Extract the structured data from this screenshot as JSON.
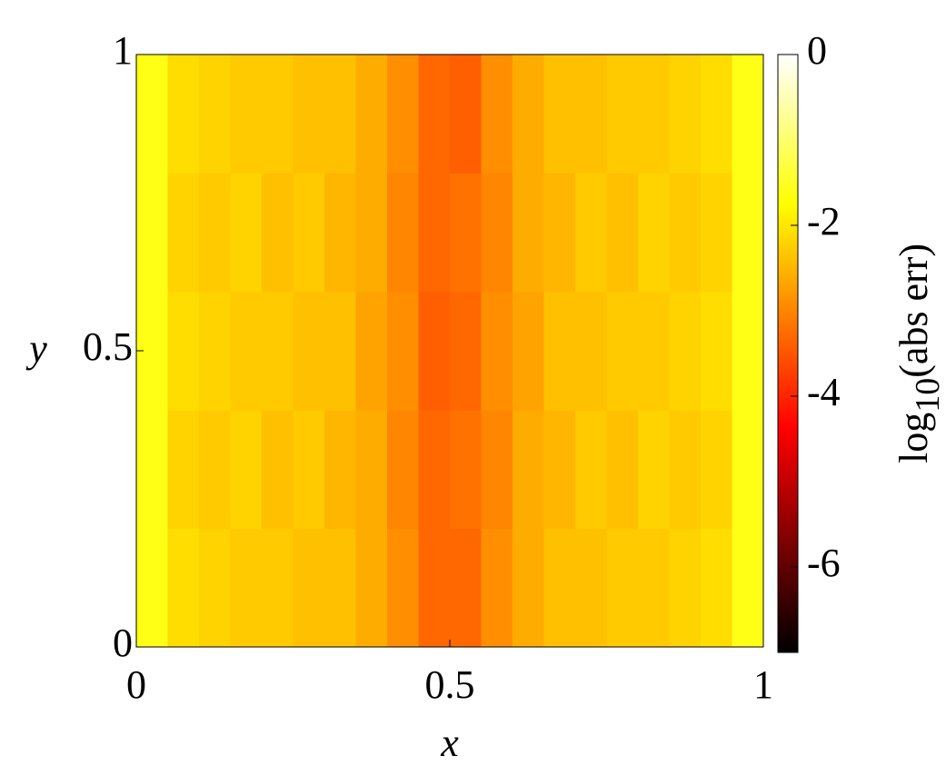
{
  "chart_data": {
    "type": "heatmap",
    "colormap": "hot",
    "xlabel": "x",
    "ylabel": "y",
    "x": [
      0.025,
      0.075,
      0.125,
      0.175,
      0.225,
      0.275,
      0.325,
      0.375,
      0.425,
      0.475,
      0.525,
      0.575,
      0.625,
      0.675,
      0.725,
      0.775,
      0.825,
      0.875,
      0.925,
      0.975
    ],
    "y": [
      0.1,
      0.3,
      0.5,
      0.7,
      0.9
    ],
    "z": [
      [
        -1.6,
        -2.1,
        -2.2,
        -2.3,
        -2.3,
        -2.4,
        -2.4,
        -2.6,
        -2.9,
        -3.3,
        -3.3,
        -2.9,
        -2.6,
        -2.4,
        -2.4,
        -2.3,
        -2.3,
        -2.2,
        -2.1,
        -1.6
      ],
      [
        -1.6,
        -2.2,
        -2.3,
        -2.2,
        -2.4,
        -2.3,
        -2.5,
        -2.6,
        -3.0,
        -3.3,
        -3.2,
        -3.0,
        -2.6,
        -2.5,
        -2.3,
        -2.4,
        -2.2,
        -2.3,
        -2.2,
        -1.6
      ],
      [
        -1.6,
        -2.1,
        -2.2,
        -2.3,
        -2.3,
        -2.4,
        -2.4,
        -2.7,
        -2.9,
        -3.4,
        -3.3,
        -2.9,
        -2.7,
        -2.4,
        -2.4,
        -2.3,
        -2.3,
        -2.2,
        -2.1,
        -1.6
      ],
      [
        -1.6,
        -2.2,
        -2.3,
        -2.2,
        -2.4,
        -2.3,
        -2.5,
        -2.6,
        -3.0,
        -3.3,
        -3.2,
        -3.0,
        -2.6,
        -2.5,
        -2.3,
        -2.4,
        -2.2,
        -2.3,
        -2.2,
        -1.6
      ],
      [
        -1.6,
        -2.1,
        -2.2,
        -2.3,
        -2.3,
        -2.4,
        -2.4,
        -2.6,
        -2.9,
        -3.3,
        -3.4,
        -2.9,
        -2.6,
        -2.4,
        -2.4,
        -2.3,
        -2.3,
        -2.2,
        -2.1,
        -1.6
      ]
    ],
    "xlim": [
      0,
      1
    ],
    "xticks": [
      0,
      0.5,
      1
    ],
    "ylim": [
      0,
      1
    ],
    "yticks": [
      0,
      0.5,
      1
    ],
    "colorbar": {
      "label": [
        "log",
        "10",
        "(abs err)"
      ],
      "lim": [
        -7,
        0
      ],
      "ticks": [
        0,
        -2,
        -4,
        -6
      ]
    }
  }
}
